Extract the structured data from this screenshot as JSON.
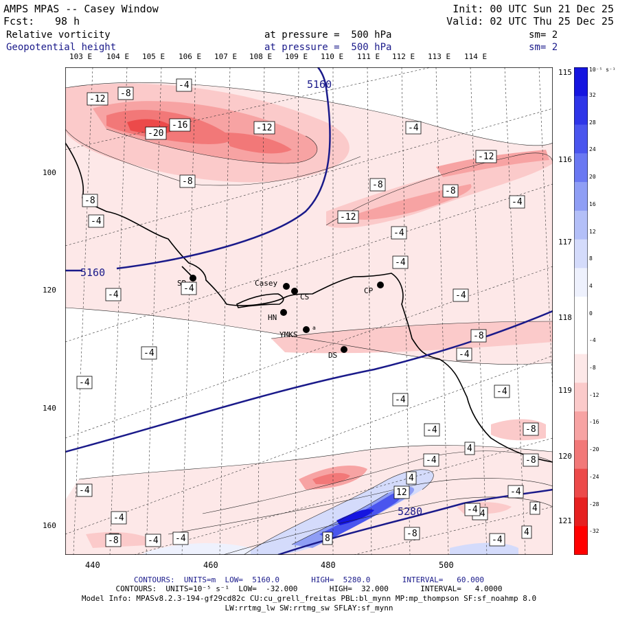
{
  "header": {
    "title": "AMPS MPAS -- Casey Window",
    "fcst_label": "Fcst:",
    "fcst_value": "98 h",
    "init": "Init: 00 UTC Sun 21 Dec 25",
    "valid": "Valid: 02 UTC Thu 25 Dec 25",
    "field1": "Relative vorticity",
    "field1_level": "at pressure =  500 hPa",
    "field1_sm": "sm= 2",
    "field2": "Geopotential height",
    "field2_level": "at pressure =  500 hPa",
    "field2_sm": "sm= 2"
  },
  "top_lon_labels": [
    "103 E",
    "104 E",
    "105 E",
    "106 E",
    "107 E",
    "108 E",
    "109 E",
    "110 E",
    "111 E",
    "112 E",
    "113 E",
    "114 E"
  ],
  "right_lat_labels": [
    "115 E",
    "116 E",
    "117 E",
    "118 E",
    "119 E",
    "120 E",
    "121 E"
  ],
  "left_axis_labels": [
    "100",
    "120",
    "140",
    "160"
  ],
  "bottom_axis_labels": [
    "440",
    "460",
    "480",
    "500"
  ],
  "colorbar": {
    "unit": "10⁻⁵ s⁻¹",
    "labels": [
      "32",
      "28",
      "24",
      "20",
      "16",
      "12",
      "8",
      "4",
      "0",
      "-4",
      "-8",
      "-12",
      "-16",
      "-20",
      "-24",
      "-28",
      "-32"
    ],
    "colors": [
      "#1515e0",
      "#2e35e8",
      "#4a55ee",
      "#6a78f2",
      "#8f9ef5",
      "#b3bff8",
      "#d4dbfb",
      "#eef1fd",
      "#ffffff",
      "#ffffff",
      "#fde8e8",
      "#fbcaca",
      "#f7a3a3",
      "#f27878",
      "#ec4a4a",
      "#e62020",
      "#ff0000"
    ]
  },
  "stations": [
    "SR",
    "Casey",
    "CS",
    "HN",
    "YMKS",
    "CP",
    "DS"
  ],
  "station_note": "a",
  "height_labels": [
    "5160",
    "5160",
    "5280"
  ],
  "vort_labels": [
    "-12",
    "-8",
    "-4",
    "-20",
    "-16",
    "-12",
    "-12",
    "-8",
    "-8",
    "-4",
    "-4",
    "-8",
    "-12",
    "-8",
    "-4",
    "-4",
    "-4",
    "-4",
    "-4",
    "-4",
    "-4",
    "-4",
    "-8",
    "-4",
    "-4",
    "-4",
    "-4",
    "-8",
    "-4",
    "-8",
    "4",
    "-4",
    "-4",
    "-4",
    "12",
    "4",
    "-4",
    "-4",
    "4",
    "-8",
    "-4",
    "-4",
    "4",
    "8",
    "-8",
    "-4",
    "4"
  ],
  "footer": {
    "line1": "CONTOURS:  UNITS=m  LOW=  5160.0       HIGH=  5280.0       INTERVAL=   60.000",
    "line2": "CONTOURS:  UNITS=10⁻⁵ s⁻¹  LOW=  -32.000       HIGH=  32.000       INTERVAL=   4.0000",
    "line3": "Model Info: MPASv8.2.3-194-gf29cd82c CU:cu_grell_freitas PBL:bl_mynn MP:mp_thompson SF:sf_noahmp 8.0",
    "line4": "LW:rrtmg_lw SW:rrtmg_sw SFLAY:sf_mynn"
  }
}
